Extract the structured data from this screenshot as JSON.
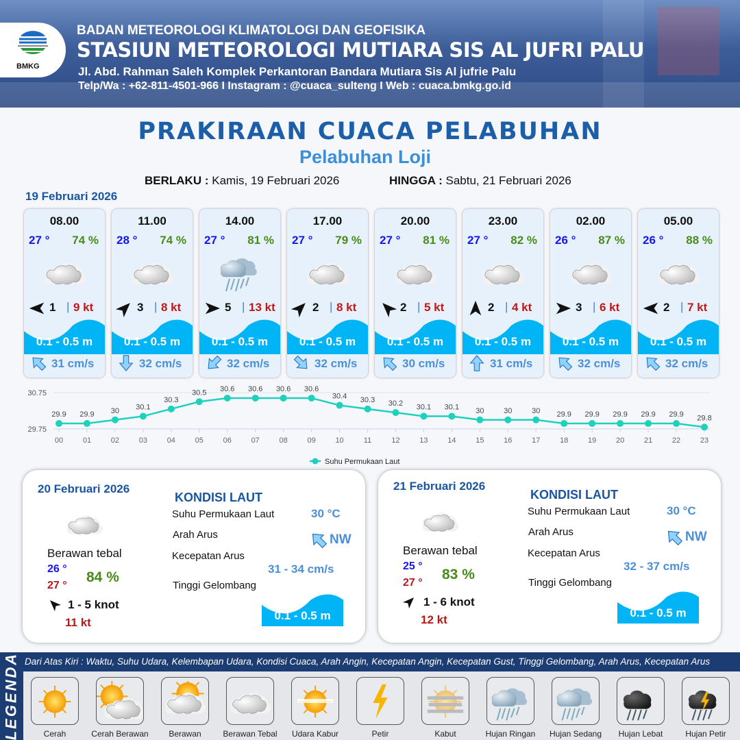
{
  "header": {
    "agency": "BADAN METEOROLOGI KLIMATOLOGI DAN GEOFISIKA",
    "station": "STASIUN METEOROLOGI MUTIARA SIS AL JUFRI PALU",
    "address": "Jl. Abd. Rahman Saleh Komplek Perkantoran Bandara Mutiara Sis Al jufrie Palu",
    "contact": "Telp/Wa : +62-811-4501-966  I  Instagram : @cuaca_sulteng  I  Web : cuaca.bmkg.go.id",
    "logo_text": "BMKG"
  },
  "title": "PRAKIRAAN CUACA PELABUHAN",
  "subtitle": "Pelabuhan Loji",
  "validity": {
    "from_label": "BERLAKU :",
    "from": "Kamis, 19 Februari 2026",
    "to_label": "HINGGA :",
    "to": "Sabtu, 21 Februari 2026"
  },
  "day1_date": "19 Februari 2026",
  "colors": {
    "temp": "#1515f0",
    "humidity": "#4a8a1c",
    "gust": "#c01818",
    "wave": "#00b4f5",
    "current": "#4a8fd8",
    "chart_line": "#1ed1bd"
  },
  "cards": [
    {
      "time": "08.00",
      "temp": "27 °",
      "hum": "74 %",
      "weather": "berawan-tebal",
      "wind_dir": "W",
      "wind": "1",
      "gust": "9 kt",
      "wave": "0.1 - 0.5 m",
      "cur_dir": "NW",
      "cur": "31 cm/s"
    },
    {
      "time": "11.00",
      "temp": "28 °",
      "hum": "74 %",
      "weather": "berawan-tebal",
      "wind_dir": "NE",
      "wind": "3",
      "gust": "8 kt",
      "wave": "0.1 - 0.5 m",
      "cur_dir": "S",
      "cur": "32 cm/s"
    },
    {
      "time": "14.00",
      "temp": "27 °",
      "hum": "81 %",
      "weather": "hujan-ringan",
      "wind_dir": "E",
      "wind": "5",
      "gust": "13 kt",
      "wave": "0.1 - 0.5 m",
      "cur_dir": "SW",
      "cur": "32 cm/s"
    },
    {
      "time": "17.00",
      "temp": "27 °",
      "hum": "79 %",
      "weather": "berawan-tebal",
      "wind_dir": "NE",
      "wind": "2",
      "gust": "8 kt",
      "wave": "0.1 - 0.5 m",
      "cur_dir": "SE",
      "cur": "32 cm/s"
    },
    {
      "time": "20.00",
      "temp": "27 °",
      "hum": "81 %",
      "weather": "berawan-tebal",
      "wind_dir": "NW",
      "wind": "2",
      "gust": "5 kt",
      "wave": "0.1 - 0.5 m",
      "cur_dir": "NW",
      "cur": "30 cm/s"
    },
    {
      "time": "23.00",
      "temp": "27 °",
      "hum": "82 %",
      "weather": "berawan-tebal",
      "wind_dir": "N",
      "wind": "2",
      "gust": "4 kt",
      "wave": "0.1 - 0.5 m",
      "cur_dir": "N",
      "cur": "31 cm/s"
    },
    {
      "time": "02.00",
      "temp": "26 °",
      "hum": "87 %",
      "weather": "berawan-tebal",
      "wind_dir": "E",
      "wind": "3",
      "gust": "6 kt",
      "wave": "0.1 - 0.5 m",
      "cur_dir": "NW",
      "cur": "32 cm/s"
    },
    {
      "time": "05.00",
      "temp": "26 °",
      "hum": "88 %",
      "weather": "berawan-tebal",
      "wind_dir": "W",
      "wind": "2",
      "gust": "7 kt",
      "wave": "0.1 - 0.5 m",
      "cur_dir": "NW",
      "cur": "32 cm/s"
    }
  ],
  "chart_data": {
    "type": "line",
    "categories": [
      "00",
      "01",
      "02",
      "03",
      "04",
      "05",
      "06",
      "07",
      "08",
      "09",
      "10",
      "11",
      "12",
      "13",
      "14",
      "15",
      "16",
      "17",
      "18",
      "19",
      "20",
      "21",
      "22",
      "23"
    ],
    "series": [
      {
        "name": "Suhu Permukaan Laut",
        "values": [
          29.9,
          29.9,
          30.0,
          30.1,
          30.3,
          30.5,
          30.6,
          30.6,
          30.6,
          30.6,
          30.4,
          30.3,
          30.2,
          30.1,
          30.1,
          30.0,
          30.0,
          30.0,
          29.9,
          29.9,
          29.9,
          29.9,
          29.9,
          29.8
        ]
      }
    ],
    "yticks": [
      "30.75",
      "29.75"
    ],
    "ylim": [
      29.75,
      30.75
    ],
    "grid": true,
    "legend": "bottom"
  },
  "panels": [
    {
      "date": "20 Februari 2026",
      "cond": "Berawan tebal",
      "tmin": "26 °",
      "tmax": "27 °",
      "hum": "84 %",
      "wind_dir": "SE",
      "wind": "1  - 5 knot",
      "gust": "11 kt",
      "sea_title": "KONDISI LAUT",
      "sst_label": "Suhu Permukaan Laut",
      "sst": "30 °C",
      "cdir_label": "Arah Arus",
      "cdir": "NW",
      "cspd_label": "Kecepatan Arus",
      "cspd": "31  - 34 cm/s",
      "wave_label": "Tinggi Gelombang",
      "wave": "0.1 - 0.5 m"
    },
    {
      "date": "21 Februari 2026",
      "cond": "Berawan tebal",
      "tmin": "25 °",
      "tmax": "27 °",
      "hum": "83 %",
      "wind_dir": "NE",
      "wind": "1  - 6 knot",
      "gust": "12 kt",
      "sea_title": "KONDISI LAUT",
      "sst_label": "Suhu Permukaan Laut",
      "sst": "30 °C",
      "cdir_label": "Arah Arus",
      "cdir": "NW",
      "cspd_label": "Kecepatan Arus",
      "cspd": "32  - 37 cm/s",
      "wave_label": "Tinggi Gelombang",
      "wave": "0.1 - 0.5 m"
    }
  ],
  "legend": {
    "title": "LEGENDA",
    "note": "Dari Atas Kiri : Waktu, Suhu Udara, Kelembapan Udara, Kondisi Cuaca, Arah Angin, Kecepatan Angin, Kecepatan Gust, Tinggi Gelombang, Arah Arus, Kecepatan Arus",
    "items": [
      {
        "label": "Cerah",
        "icon": "cerah"
      },
      {
        "label": "Cerah Berawan",
        "icon": "cerah-berawan"
      },
      {
        "label": "Berawan",
        "icon": "berawan"
      },
      {
        "label": "Berawan Tebal",
        "icon": "berawan-tebal"
      },
      {
        "label": "Udara Kabur",
        "icon": "udara-kabur"
      },
      {
        "label": "Petir",
        "icon": "petir"
      },
      {
        "label": "Kabut",
        "icon": "kabut"
      },
      {
        "label": "Hujan Ringan",
        "icon": "hujan-ringan"
      },
      {
        "label": "Hujan Sedang",
        "icon": "hujan-sedang"
      },
      {
        "label": "Hujan Lebat",
        "icon": "hujan-lebat"
      },
      {
        "label": "Hujan Petir",
        "icon": "hujan-petir"
      }
    ]
  }
}
